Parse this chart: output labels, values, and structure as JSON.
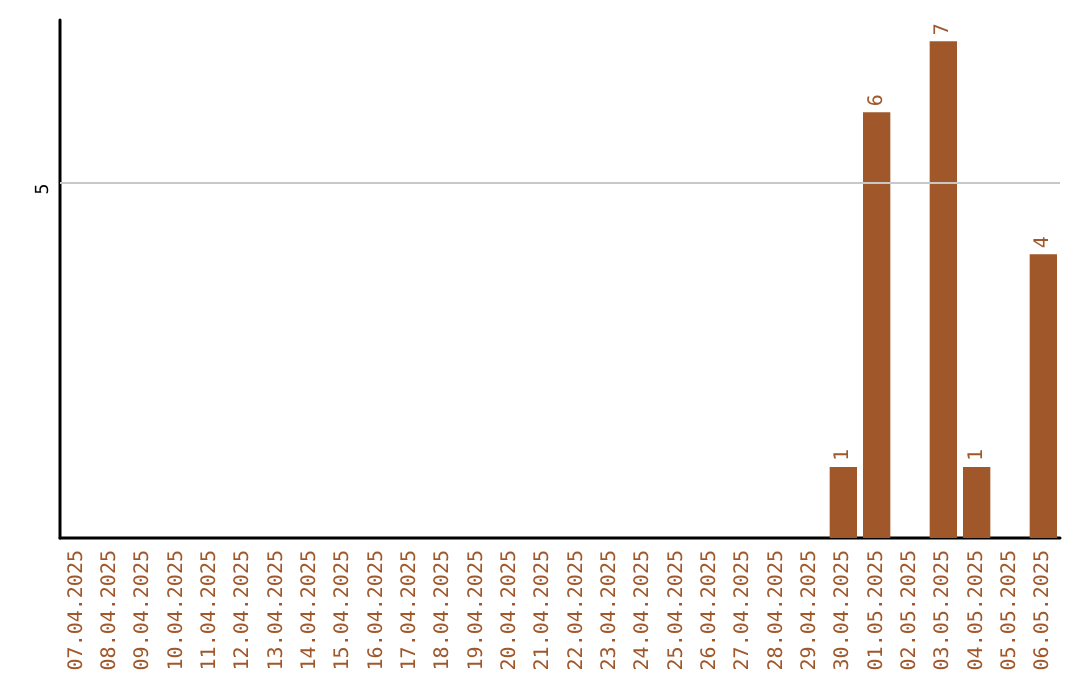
{
  "chart_data": {
    "type": "bar",
    "categories": [
      "07.04.2025",
      "08.04.2025",
      "09.04.2025",
      "10.04.2025",
      "11.04.2025",
      "12.04.2025",
      "13.04.2025",
      "14.04.2025",
      "15.04.2025",
      "16.04.2025",
      "17.04.2025",
      "18.04.2025",
      "19.04.2025",
      "20.04.2025",
      "21.04.2025",
      "22.04.2025",
      "23.04.2025",
      "24.04.2025",
      "25.04.2025",
      "26.04.2025",
      "27.04.2025",
      "28.04.2025",
      "29.04.2025",
      "30.04.2025",
      "01.05.2025",
      "02.05.2025",
      "03.05.2025",
      "04.05.2025",
      "05.05.2025",
      "06.05.2025"
    ],
    "values": [
      null,
      null,
      null,
      null,
      null,
      null,
      null,
      null,
      null,
      null,
      null,
      null,
      null,
      null,
      null,
      null,
      null,
      null,
      null,
      null,
      null,
      null,
      null,
      1,
      6,
      null,
      7,
      1,
      null,
      4
    ],
    "value_labels": [
      null,
      null,
      null,
      null,
      null,
      null,
      null,
      null,
      null,
      null,
      null,
      null,
      null,
      null,
      null,
      null,
      null,
      null,
      null,
      null,
      null,
      null,
      null,
      "1",
      "6",
      null,
      "7",
      "1",
      null,
      "4"
    ],
    "color": "#a0572a",
    "ref_lines": [
      {
        "axis": "y",
        "value": 5,
        "label": "5",
        "color": "#c8c8c8"
      }
    ]
  }
}
